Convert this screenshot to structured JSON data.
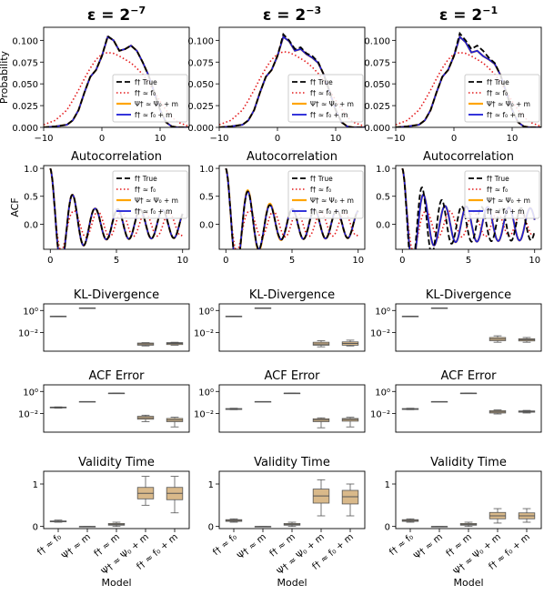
{
  "columns": [
    {
      "eps_base": "ε = 2",
      "eps_exp": "−7"
    },
    {
      "eps_base": "ε = 2",
      "eps_exp": "−3"
    },
    {
      "eps_base": "ε = 2",
      "eps_exp": "−1"
    }
  ],
  "colors": {
    "true": "#000000",
    "f0": "#e41a1c",
    "psi": "#ffa500",
    "f0m": "#1f1fd6",
    "box_fill": "#d9b98a",
    "box_edge": "#555555"
  },
  "legend": [
    "f† True",
    "f† ≈ f₀",
    "Ψ† ≈ Ψ₀ + m",
    "f† ≈ f₀ + m"
  ],
  "model_labels": [
    "f† ≈ f₀",
    "Ψ† ≈ m",
    "f† ≈ m",
    "Ψ† ≈ Ψ₀ + m",
    "f† ≈ f₀ + m"
  ],
  "xlabel_model": "Model",
  "chart_data": [
    {
      "type": "line",
      "row": "density",
      "title": "",
      "ylabel": "Probability",
      "xlim": [
        -10,
        15
      ],
      "ylim": [
        0,
        0.115
      ],
      "xticks": [
        "−10",
        "0",
        "10"
      ],
      "xtick_values": [
        -10,
        0,
        10
      ],
      "yticks": [
        "0.000",
        "0.025",
        "0.050",
        "0.075",
        "0.100"
      ],
      "ytick_values": [
        0,
        0.025,
        0.05,
        0.075,
        0.1
      ],
      "x": [
        -10,
        -8,
        -6,
        -5,
        -4,
        -3,
        -2,
        -1,
        0,
        1,
        2,
        3,
        4,
        5,
        6,
        7,
        8,
        9,
        10,
        11,
        12,
        13,
        15
      ],
      "series_by_panel": [
        {
          "true": [
            0,
            0.001,
            0.003,
            0.008,
            0.02,
            0.04,
            0.058,
            0.066,
            0.082,
            0.105,
            0.1,
            0.088,
            0.09,
            0.094,
            0.088,
            0.075,
            0.06,
            0.04,
            0.02,
            0.006,
            0.001,
            0.0,
            0
          ],
          "f0": [
            0.003,
            0.008,
            0.02,
            0.031,
            0.043,
            0.056,
            0.068,
            0.078,
            0.084,
            0.086,
            0.085,
            0.082,
            0.078,
            0.074,
            0.068,
            0.061,
            0.052,
            0.041,
            0.03,
            0.02,
            0.012,
            0.006,
            0.001
          ],
          "psi": [
            0,
            0.001,
            0.003,
            0.008,
            0.02,
            0.04,
            0.058,
            0.066,
            0.082,
            0.104,
            0.1,
            0.088,
            0.09,
            0.094,
            0.088,
            0.075,
            0.06,
            0.04,
            0.02,
            0.006,
            0.001,
            0.0,
            0
          ],
          "f0m": [
            0,
            0.001,
            0.003,
            0.008,
            0.02,
            0.04,
            0.058,
            0.066,
            0.082,
            0.104,
            0.1,
            0.088,
            0.09,
            0.094,
            0.088,
            0.075,
            0.06,
            0.04,
            0.02,
            0.006,
            0.001,
            0.0,
            0
          ]
        },
        {
          "true": [
            0,
            0.001,
            0.003,
            0.008,
            0.02,
            0.04,
            0.058,
            0.066,
            0.082,
            0.107,
            0.1,
            0.09,
            0.092,
            0.085,
            0.082,
            0.075,
            0.06,
            0.04,
            0.02,
            0.006,
            0.001,
            0.0,
            0
          ],
          "f0": [
            0.003,
            0.008,
            0.02,
            0.031,
            0.043,
            0.056,
            0.068,
            0.078,
            0.084,
            0.087,
            0.086,
            0.083,
            0.079,
            0.075,
            0.069,
            0.062,
            0.053,
            0.042,
            0.031,
            0.021,
            0.012,
            0.006,
            0.001
          ],
          "psi": [
            0,
            0.001,
            0.003,
            0.008,
            0.02,
            0.04,
            0.058,
            0.066,
            0.082,
            0.104,
            0.099,
            0.088,
            0.09,
            0.084,
            0.08,
            0.074,
            0.06,
            0.04,
            0.02,
            0.006,
            0.001,
            0.0,
            0
          ],
          "f0m": [
            0,
            0.001,
            0.003,
            0.008,
            0.02,
            0.04,
            0.058,
            0.066,
            0.082,
            0.104,
            0.099,
            0.088,
            0.09,
            0.084,
            0.08,
            0.074,
            0.06,
            0.04,
            0.02,
            0.006,
            0.001,
            0.0,
            0
          ]
        },
        {
          "true": [
            0,
            0.001,
            0.003,
            0.008,
            0.02,
            0.04,
            0.058,
            0.066,
            0.082,
            0.108,
            0.1,
            0.09,
            0.094,
            0.088,
            0.08,
            0.074,
            0.06,
            0.04,
            0.02,
            0.006,
            0.001,
            0.0,
            0
          ],
          "f0": [
            0.003,
            0.008,
            0.02,
            0.031,
            0.043,
            0.056,
            0.068,
            0.078,
            0.084,
            0.086,
            0.085,
            0.082,
            0.078,
            0.074,
            0.068,
            0.061,
            0.052,
            0.041,
            0.03,
            0.02,
            0.012,
            0.006,
            0.001
          ],
          "psi": [
            0,
            0.001,
            0.003,
            0.008,
            0.02,
            0.04,
            0.058,
            0.066,
            0.082,
            0.104,
            0.098,
            0.086,
            0.088,
            0.082,
            0.078,
            0.073,
            0.06,
            0.04,
            0.02,
            0.006,
            0.001,
            0.0,
            0
          ],
          "f0m": [
            0,
            0.001,
            0.003,
            0.008,
            0.02,
            0.04,
            0.058,
            0.066,
            0.082,
            0.104,
            0.098,
            0.086,
            0.088,
            0.082,
            0.078,
            0.073,
            0.06,
            0.04,
            0.02,
            0.006,
            0.001,
            0.0,
            0
          ]
        }
      ]
    },
    {
      "type": "line",
      "row": "acf",
      "title": "Autocorrelation",
      "ylabel": "ACF",
      "xlim": [
        -0.5,
        10.5
      ],
      "ylim": [
        -0.45,
        1.05
      ],
      "xticks": [
        "0",
        "5",
        "10"
      ],
      "xtick_values": [
        0,
        5,
        10
      ],
      "yticks": [
        "0.0",
        "0.5",
        "1.0"
      ],
      "ytick_values": [
        0,
        0.5,
        1
      ],
      "params_by_panel": [
        {
          "true": {
            "w": 3.7,
            "d": 0.38,
            "a": 0.3
          },
          "f0": {
            "w": 3.5,
            "d": 0.85,
            "a": 0.25
          },
          "psi": {
            "w": 3.7,
            "d": 0.38,
            "a": 0.3
          },
          "f0m": {
            "w": 3.7,
            "d": 0.38,
            "a": 0.3
          }
        },
        {
          "true": {
            "w": 3.75,
            "d": 0.32,
            "a": 0.3
          },
          "f0": {
            "w": 3.5,
            "d": 0.85,
            "a": 0.25
          },
          "psi": {
            "w": 3.75,
            "d": 0.3,
            "a": 0.3
          },
          "f0m": {
            "w": 3.75,
            "d": 0.32,
            "a": 0.3
          }
        },
        {
          "true": {
            "w": 4.2,
            "d": 0.28,
            "a": 0.35
          },
          "f0": {
            "w": 3.5,
            "d": 0.85,
            "a": 0.25
          },
          "psi": {
            "w": 3.9,
            "d": 0.4,
            "a": 0.35
          },
          "f0m": {
            "w": 3.9,
            "d": 0.4,
            "a": 0.35
          }
        }
      ]
    },
    {
      "type": "box",
      "row": "kl",
      "title": "KL-Divergence",
      "log": true,
      "ylim": [
        0.0002,
        4
      ],
      "yticks": [
        "10⁻²",
        "10⁰"
      ],
      "ytick_values": [
        0.01,
        1
      ],
      "boxes_by_panel": [
        [
          {
            "med": 0.3,
            "q1": 0.3,
            "q3": 0.3,
            "lo": 0.3,
            "hi": 0.3
          },
          {
            "med": 1.7,
            "q1": 1.7,
            "q3": 1.7,
            "lo": 1.7,
            "hi": 1.7
          },
          null,
          {
            "med": 0.0009,
            "q1": 0.0007,
            "q3": 0.0011,
            "lo": 0.0006,
            "hi": 0.0012
          },
          {
            "med": 0.001,
            "q1": 0.0008,
            "q3": 0.0012,
            "lo": 0.0007,
            "hi": 0.0013
          }
        ],
        [
          {
            "med": 0.3,
            "q1": 0.3,
            "q3": 0.3,
            "lo": 0.3,
            "hi": 0.3
          },
          {
            "med": 1.7,
            "q1": 1.7,
            "q3": 1.7,
            "lo": 1.7,
            "hi": 1.7
          },
          null,
          {
            "med": 0.0009,
            "q1": 0.0007,
            "q3": 0.0013,
            "lo": 0.0005,
            "hi": 0.0018
          },
          {
            "med": 0.001,
            "q1": 0.0007,
            "q3": 0.0014,
            "lo": 0.0006,
            "hi": 0.002
          }
        ],
        [
          {
            "med": 0.3,
            "q1": 0.3,
            "q3": 0.3,
            "lo": 0.3,
            "hi": 0.3
          },
          {
            "med": 1.7,
            "q1": 1.7,
            "q3": 1.7,
            "lo": 1.7,
            "hi": 1.7
          },
          null,
          {
            "med": 0.0025,
            "q1": 0.0018,
            "q3": 0.0035,
            "lo": 0.0013,
            "hi": 0.005
          },
          {
            "med": 0.0022,
            "q1": 0.0017,
            "q3": 0.0027,
            "lo": 0.0013,
            "hi": 0.0035
          }
        ]
      ]
    },
    {
      "type": "box",
      "row": "acferr",
      "title": "ACF Error",
      "log": true,
      "ylim": [
        0.0002,
        4
      ],
      "yticks": [
        "10⁻²",
        "10⁰"
      ],
      "ytick_values": [
        0.01,
        1
      ],
      "boxes_by_panel": [
        [
          {
            "med": 0.035,
            "q1": 0.032,
            "q3": 0.038,
            "lo": 0.03,
            "hi": 0.04
          },
          {
            "med": 0.12,
            "q1": 0.12,
            "q3": 0.12,
            "lo": 0.12,
            "hi": 0.12
          },
          {
            "med": 0.7,
            "q1": 0.7,
            "q3": 0.7,
            "lo": 0.7,
            "hi": 0.7
          },
          {
            "med": 0.004,
            "q1": 0.003,
            "q3": 0.0055,
            "lo": 0.0018,
            "hi": 0.007
          },
          {
            "med": 0.0025,
            "q1": 0.0018,
            "q3": 0.0035,
            "lo": 0.0006,
            "hi": 0.0045
          }
        ],
        [
          {
            "med": 0.025,
            "q1": 0.023,
            "q3": 0.028,
            "lo": 0.022,
            "hi": 0.03
          },
          {
            "med": 0.12,
            "q1": 0.12,
            "q3": 0.12,
            "lo": 0.12,
            "hi": 0.12
          },
          {
            "med": 0.7,
            "q1": 0.7,
            "q3": 0.7,
            "lo": 0.7,
            "hi": 0.7
          },
          {
            "med": 0.0025,
            "q1": 0.0018,
            "q3": 0.0033,
            "lo": 0.0005,
            "hi": 0.004
          },
          {
            "med": 0.0028,
            "q1": 0.002,
            "q3": 0.0035,
            "lo": 0.0006,
            "hi": 0.0045
          }
        ],
        [
          {
            "med": 0.025,
            "q1": 0.023,
            "q3": 0.028,
            "lo": 0.022,
            "hi": 0.03
          },
          {
            "med": 0.12,
            "q1": 0.12,
            "q3": 0.12,
            "lo": 0.12,
            "hi": 0.12
          },
          {
            "med": 0.7,
            "q1": 0.7,
            "q3": 0.7,
            "lo": 0.7,
            "hi": 0.7
          },
          {
            "med": 0.014,
            "q1": 0.011,
            "q3": 0.018,
            "lo": 0.009,
            "hi": 0.021
          },
          {
            "med": 0.015,
            "q1": 0.013,
            "q3": 0.017,
            "lo": 0.011,
            "hi": 0.019
          }
        ]
      ]
    },
    {
      "type": "box",
      "row": "validity",
      "title": "Validity Time",
      "log": false,
      "ylim": [
        -0.05,
        1.3
      ],
      "yticks": [
        "0",
        "1"
      ],
      "ytick_values": [
        0,
        1
      ],
      "boxes_by_panel": [
        [
          {
            "med": 0.12,
            "q1": 0.11,
            "q3": 0.13,
            "lo": 0.1,
            "hi": 0.15
          },
          {
            "med": 0.0,
            "q1": 0.0,
            "q3": 0.0,
            "lo": 0.0,
            "hi": 0.0
          },
          {
            "med": 0.05,
            "q1": 0.03,
            "q3": 0.07,
            "lo": 0.0,
            "hi": 0.1
          },
          {
            "med": 0.78,
            "q1": 0.65,
            "q3": 0.92,
            "lo": 0.5,
            "hi": 1.18
          },
          {
            "med": 0.78,
            "q1": 0.63,
            "q3": 0.92,
            "lo": 0.32,
            "hi": 1.18
          }
        ],
        [
          {
            "med": 0.14,
            "q1": 0.12,
            "q3": 0.16,
            "lo": 0.1,
            "hi": 0.18
          },
          {
            "med": 0.0,
            "q1": 0.0,
            "q3": 0.0,
            "lo": 0.0,
            "hi": 0.0
          },
          {
            "med": 0.05,
            "q1": 0.03,
            "q3": 0.07,
            "lo": 0.0,
            "hi": 0.1
          },
          {
            "med": 0.72,
            "q1": 0.55,
            "q3": 0.88,
            "lo": 0.25,
            "hi": 1.1
          },
          {
            "med": 0.7,
            "q1": 0.53,
            "q3": 0.85,
            "lo": 0.25,
            "hi": 1.0
          }
        ],
        [
          {
            "med": 0.14,
            "q1": 0.12,
            "q3": 0.16,
            "lo": 0.1,
            "hi": 0.18
          },
          {
            "med": 0.0,
            "q1": 0.0,
            "q3": 0.0,
            "lo": 0.0,
            "hi": 0.0
          },
          {
            "med": 0.05,
            "q1": 0.03,
            "q3": 0.07,
            "lo": 0.0,
            "hi": 0.1
          },
          {
            "med": 0.25,
            "q1": 0.18,
            "q3": 0.33,
            "lo": 0.08,
            "hi": 0.42
          },
          {
            "med": 0.25,
            "q1": 0.18,
            "q3": 0.32,
            "lo": 0.1,
            "hi": 0.42
          }
        ]
      ]
    }
  ]
}
